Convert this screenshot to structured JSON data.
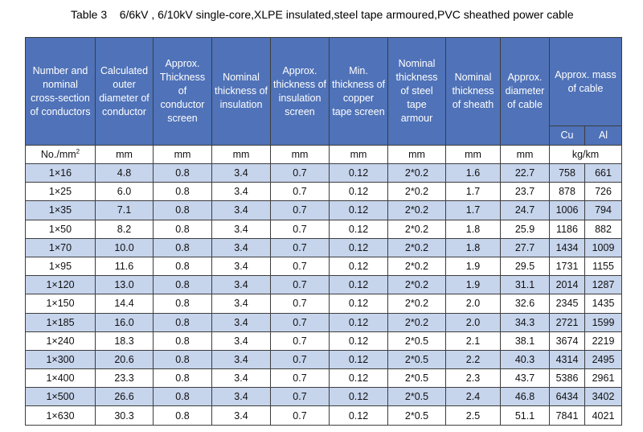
{
  "title": "Table 3    6/6kV , 6/10kV single-core,XLPE insulated,steel tape armoured,PVC sheathed power cable",
  "headers": [
    "Number and nominal cross-section of conductors",
    "Calculated outer diameter of conductor",
    "Approx. Thickness of conductor screen",
    "Nominal thickness of insulation",
    "Approx. thickness of insulation screen",
    "Min. thickness of copper tape screen",
    "Nominal thickness of steel tape armour",
    "Nominal thickness of sheath",
    "Approx. diameter of cable",
    "Approx. mass of cable"
  ],
  "mass_sub": [
    "Cu",
    "Al"
  ],
  "units": {
    "nominal": "No./mm",
    "nominal_sup": "2",
    "cols": [
      "mm",
      "mm",
      "mm",
      "mm",
      "mm",
      "mm",
      "mm",
      "mm"
    ],
    "mass": "kg/km"
  },
  "rows": [
    [
      "1×16",
      "4.8",
      "0.8",
      "3.4",
      "0.7",
      "0.12",
      "2*0.2",
      "1.6",
      "22.7",
      "758",
      "661"
    ],
    [
      "1×25",
      "6.0",
      "0.8",
      "3.4",
      "0.7",
      "0.12",
      "2*0.2",
      "1.7",
      "23.7",
      "878",
      "726"
    ],
    [
      "1×35",
      "7.1",
      "0.8",
      "3.4",
      "0.7",
      "0.12",
      "2*0.2",
      "1.7",
      "24.7",
      "1006",
      "794"
    ],
    [
      "1×50",
      "8.2",
      "0.8",
      "3.4",
      "0.7",
      "0.12",
      "2*0.2",
      "1.8",
      "25.9",
      "1186",
      "882"
    ],
    [
      "1×70",
      "10.0",
      "0.8",
      "3.4",
      "0.7",
      "0.12",
      "2*0.2",
      "1.8",
      "27.7",
      "1434",
      "1009"
    ],
    [
      "1×95",
      "11.6",
      "0.8",
      "3.4",
      "0.7",
      "0.12",
      "2*0.2",
      "1.9",
      "29.5",
      "1731",
      "1155"
    ],
    [
      "1×120",
      "13.0",
      "0.8",
      "3.4",
      "0.7",
      "0.12",
      "2*0.2",
      "1.9",
      "31.1",
      "2014",
      "1287"
    ],
    [
      "1×150",
      "14.4",
      "0.8",
      "3.4",
      "0.7",
      "0.12",
      "2*0.2",
      "2.0",
      "32.6",
      "2345",
      "1435"
    ],
    [
      "1×185",
      "16.0",
      "0.8",
      "3.4",
      "0.7",
      "0.12",
      "2*0.2",
      "2.0",
      "34.3",
      "2721",
      "1599"
    ],
    [
      "1×240",
      "18.3",
      "0.8",
      "3.4",
      "0.7",
      "0.12",
      "2*0.5",
      "2.1",
      "38.1",
      "3674",
      "2219"
    ],
    [
      "1×300",
      "20.6",
      "0.8",
      "3.4",
      "0.7",
      "0.12",
      "2*0.5",
      "2.2",
      "40.3",
      "4314",
      "2495"
    ],
    [
      "1×400",
      "23.3",
      "0.8",
      "3.4",
      "0.7",
      "0.12",
      "2*0.5",
      "2.3",
      "43.7",
      "5386",
      "2961"
    ],
    [
      "1×500",
      "26.6",
      "0.8",
      "3.4",
      "0.7",
      "0.12",
      "2*0.5",
      "2.4",
      "46.8",
      "6434",
      "3402"
    ],
    [
      "1×630",
      "30.3",
      "0.8",
      "3.4",
      "0.7",
      "0.12",
      "2*0.5",
      "2.5",
      "51.1",
      "7841",
      "4021"
    ]
  ],
  "colors": {
    "header_bg": "#4f72b8",
    "stripe_bg": "#c6d4ec",
    "border": "#3d3d3d"
  }
}
